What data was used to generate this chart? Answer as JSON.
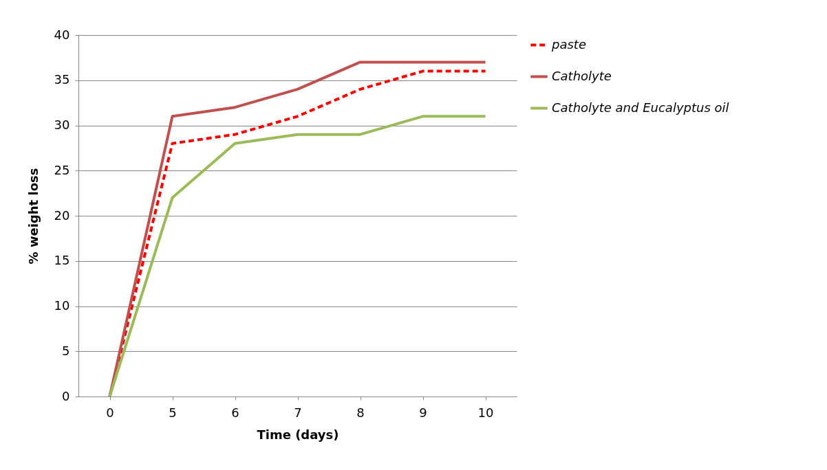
{
  "chart_data": {
    "type": "line",
    "xlabel": "Time (days)",
    "ylabel": "% weight loss",
    "categories": [
      "0",
      "5",
      "6",
      "7",
      "8",
      "9",
      "10"
    ],
    "series": [
      {
        "name": "paste",
        "color": "#ff0000",
        "line_style": "dashed",
        "values": [
          0,
          28,
          29,
          31,
          34,
          36,
          36
        ]
      },
      {
        "name": "Catholyte",
        "color": "#c0504d",
        "line_style": "solid",
        "values": [
          0,
          31,
          32,
          34,
          37,
          37,
          37
        ]
      },
      {
        "name": "Catholyte and Eucalyptus oil",
        "color": "#9bbb59",
        "line_style": "solid",
        "values": [
          0,
          22,
          28,
          29,
          29,
          31,
          31
        ]
      }
    ],
    "ylim": [
      0,
      40
    ],
    "yticks": [
      0,
      5,
      10,
      15,
      20,
      25,
      30,
      35,
      40
    ],
    "grid": "y",
    "legend": "right",
    "marker": "none"
  }
}
